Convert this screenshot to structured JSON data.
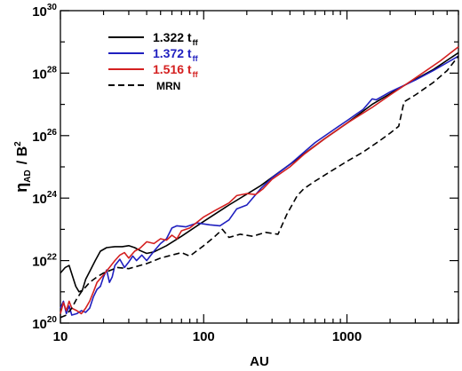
{
  "chart_data": {
    "type": "line",
    "xlabel": "AU",
    "ylabel": "η_AD / B²",
    "ylabel_main": "η",
    "ylabel_sub": "AD",
    "ylabel_rest": "/ B",
    "ylabel_sup": "2",
    "x_scale": "log",
    "y_scale": "log",
    "xlim": [
      10,
      6000
    ],
    "ylim": [
      1e+20,
      1e+30
    ],
    "grid": false,
    "legend_position": "top-left",
    "x_ticks": [
      {
        "value": 10,
        "label": "10"
      },
      {
        "value": 100,
        "label": "100"
      },
      {
        "value": 1000,
        "label": "1000"
      }
    ],
    "y_ticks": [
      {
        "value": 1e+20,
        "base": "10",
        "exp": "20"
      },
      {
        "value": 1e+22,
        "base": "10",
        "exp": "22"
      },
      {
        "value": 1e+24,
        "base": "10",
        "exp": "24"
      },
      {
        "value": 1e+26,
        "base": "10",
        "exp": "26"
      },
      {
        "value": 1e+28,
        "base": "10",
        "exp": "28"
      },
      {
        "value": 1e+30,
        "base": "10",
        "exp": "30"
      }
    ],
    "series": [
      {
        "name": "1.322 t_ff",
        "label_main": "1.322 t",
        "label_sub": "ff",
        "color": "#000000",
        "dash": "solid",
        "points": [
          [
            10.0,
            4e+21
          ],
          [
            10.8,
            6e+21
          ],
          [
            11.5,
            7e+21
          ],
          [
            12.2,
            3e+21
          ],
          [
            12.8,
            1.5e+21
          ],
          [
            13.5,
            1e+21
          ],
          [
            14.2,
            1.1e+21
          ],
          [
            15.0,
            2.5e+21
          ],
          [
            16.2,
            5e+21
          ],
          [
            17.5,
            1e+22
          ],
          [
            19.0,
            2e+22
          ],
          [
            21.0,
            2.6e+22
          ],
          [
            24.0,
            2.8e+22
          ],
          [
            27.0,
            2.8e+22
          ],
          [
            30.0,
            3e+22
          ],
          [
            33.0,
            2.6e+22
          ],
          [
            36.0,
            2.1e+22
          ],
          [
            40.0,
            1.7e+22
          ],
          [
            45.0,
            1.9e+22
          ],
          [
            55.0,
            3e+22
          ],
          [
            70.0,
            6e+22
          ],
          [
            100.0,
            1.8e+23
          ],
          [
            150.0,
            6e+23
          ],
          [
            250.0,
            2.5e+24
          ],
          [
            400.0,
            1.2e+25
          ],
          [
            700.0,
            8e+25
          ],
          [
            1000.0,
            2.5e+26
          ],
          [
            1500.0,
            1e+27
          ],
          [
            2500.0,
            4e+27
          ],
          [
            4000.0,
            1.3e+28
          ],
          [
            6000.0,
            4.5e+28
          ]
        ]
      },
      {
        "name": "1.372 t_ff",
        "label_main": "1.372 t",
        "label_sub": "ff",
        "color": "#1f1fbf",
        "dash": "solid",
        "points": [
          [
            10.0,
            3e+20
          ],
          [
            10.5,
            5e+20
          ],
          [
            11.0,
            2e+20
          ],
          [
            11.5,
            3.5e+20
          ],
          [
            12.0,
            1.8e+20
          ],
          [
            13.0,
            2e+20
          ],
          [
            14.0,
            2.5e+20
          ],
          [
            15.0,
            2.2e+20
          ],
          [
            16.0,
            3e+20
          ],
          [
            17.0,
            7e+20
          ],
          [
            18.0,
            1.2e+21
          ],
          [
            19.0,
            1.5e+21
          ],
          [
            20.0,
            3e+21
          ],
          [
            21.0,
            5e+21
          ],
          [
            22.0,
            2e+21
          ],
          [
            23.0,
            3e+21
          ],
          [
            24.0,
            7e+21
          ],
          [
            26.0,
            1.1e+22
          ],
          [
            28.0,
            6e+21
          ],
          [
            30.0,
            9e+21
          ],
          [
            32.0,
            1.4e+22
          ],
          [
            34.0,
            1e+22
          ],
          [
            37.0,
            1.5e+22
          ],
          [
            40.0,
            1e+22
          ],
          [
            45.0,
            2e+22
          ],
          [
            50.0,
            3.5e+22
          ],
          [
            55.0,
            5e+22
          ],
          [
            60.0,
            1.1e+23
          ],
          [
            65.0,
            1.3e+23
          ],
          [
            75.0,
            1.2e+23
          ],
          [
            90.0,
            1.6e+23
          ],
          [
            110.0,
            1.4e+23
          ],
          [
            130.0,
            1.3e+23
          ],
          [
            150.0,
            2e+23
          ],
          [
            170.0,
            4.5e+23
          ],
          [
            200.0,
            6e+23
          ],
          [
            250.0,
            2e+24
          ],
          [
            300.0,
            4.5e+24
          ],
          [
            400.0,
            1.2e+25
          ],
          [
            600.0,
            6e+25
          ],
          [
            800.0,
            1.5e+26
          ],
          [
            1000.0,
            3e+26
          ],
          [
            1300.0,
            7e+26
          ],
          [
            1500.0,
            1.5e+27
          ],
          [
            1600.0,
            1.4e+27
          ],
          [
            2000.0,
            2.5e+27
          ],
          [
            3000.0,
            6e+27
          ],
          [
            4000.0,
            1.2e+28
          ],
          [
            6000.0,
            3.5e+28
          ]
        ]
      },
      {
        "name": "1.516 t_ff",
        "label_main": "1.516 t",
        "label_sub": "ff",
        "color": "#d42020",
        "dash": "solid",
        "points": [
          [
            10.0,
            2e+20
          ],
          [
            10.5,
            4.5e+20
          ],
          [
            11.0,
            2.5e+20
          ],
          [
            11.5,
            5e+20
          ],
          [
            12.0,
            3e+20
          ],
          [
            13.0,
            2.5e+20
          ],
          [
            14.0,
            2e+20
          ],
          [
            15.0,
            3e+20
          ],
          [
            16.0,
            5e+20
          ],
          [
            17.0,
            1e+21
          ],
          [
            18.0,
            2e+21
          ],
          [
            20.0,
            3.5e+21
          ],
          [
            22.0,
            6e+21
          ],
          [
            24.0,
            1e+22
          ],
          [
            26.0,
            1.5e+22
          ],
          [
            28.0,
            1.8e+22
          ],
          [
            30.0,
            1.2e+22
          ],
          [
            33.0,
            2e+22
          ],
          [
            36.0,
            2.5e+22
          ],
          [
            40.0,
            4e+22
          ],
          [
            45.0,
            3.5e+22
          ],
          [
            50.0,
            5e+22
          ],
          [
            55.0,
            4.5e+22
          ],
          [
            60.0,
            6.5e+22
          ],
          [
            65.0,
            5e+22
          ],
          [
            70.0,
            9e+22
          ],
          [
            80.0,
            1.1e+23
          ],
          [
            100.0,
            2.5e+23
          ],
          [
            120.0,
            4e+23
          ],
          [
            150.0,
            7e+23
          ],
          [
            170.0,
            1.2e+24
          ],
          [
            200.0,
            1.4e+24
          ],
          [
            230.0,
            1.3e+24
          ],
          [
            260.0,
            2e+24
          ],
          [
            300.0,
            4e+24
          ],
          [
            400.0,
            1e+25
          ],
          [
            500.0,
            2.5e+25
          ],
          [
            700.0,
            8e+25
          ],
          [
            1000.0,
            2.5e+26
          ],
          [
            1500.0,
            8e+26
          ],
          [
            2000.0,
            2e+27
          ],
          [
            3000.0,
            7e+27
          ],
          [
            4500.0,
            2.5e+28
          ],
          [
            6000.0,
            7e+28
          ]
        ]
      },
      {
        "name": "MRN",
        "label_main": "MRN",
        "label_sub": "",
        "color": "#000000",
        "dash": "dashed",
        "points": [
          [
            10.0,
            1.5e+20
          ],
          [
            11.0,
            1.8e+20
          ],
          [
            12.0,
            3e+20
          ],
          [
            13.0,
            6e+20
          ],
          [
            14.0,
            1e+21
          ],
          [
            16.0,
            2e+21
          ],
          [
            18.0,
            3e+21
          ],
          [
            20.0,
            4e+21
          ],
          [
            25.0,
            6e+21
          ],
          [
            30.0,
            5.5e+21
          ],
          [
            40.0,
            8e+21
          ],
          [
            50.0,
            1.2e+22
          ],
          [
            60.0,
            1.5e+22
          ],
          [
            70.0,
            1.8e+22
          ],
          [
            80.0,
            1.4e+22
          ],
          [
            100.0,
            3e+22
          ],
          [
            120.0,
            6e+22
          ],
          [
            135.0,
            1e+23
          ],
          [
            150.0,
            5.5e+22
          ],
          [
            180.0,
            7e+22
          ],
          [
            220.0,
            6e+22
          ],
          [
            270.0,
            8e+22
          ],
          [
            330.0,
            7e+22
          ],
          [
            380.0,
            3e+23
          ],
          [
            450.0,
            1.2e+24
          ],
          [
            500.0,
            2e+24
          ],
          [
            600.0,
            3.5e+24
          ],
          [
            800.0,
            8e+24
          ],
          [
            1000.0,
            1.5e+25
          ],
          [
            1300.0,
            3e+25
          ],
          [
            1700.0,
            7e+25
          ],
          [
            2000.0,
            1.2e+26
          ],
          [
            2300.0,
            2e+26
          ],
          [
            2500.0,
            1.2e+27
          ],
          [
            3000.0,
            2e+27
          ],
          [
            4000.0,
            5e+27
          ],
          [
            5000.0,
            1.2e+28
          ],
          [
            6000.0,
            3.5e+28
          ]
        ]
      }
    ]
  }
}
